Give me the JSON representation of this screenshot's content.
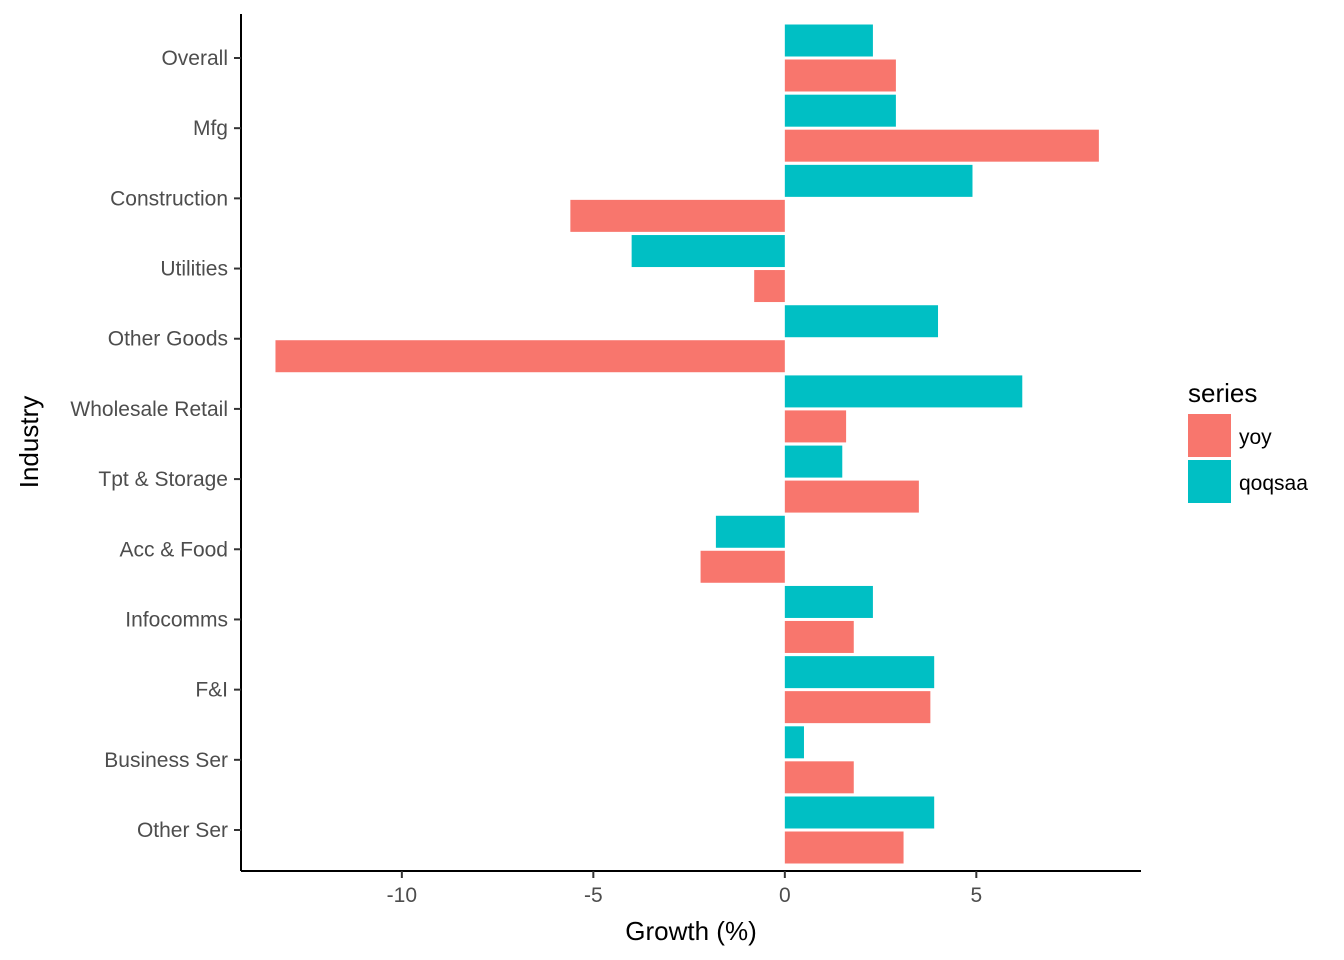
{
  "chart_data": {
    "type": "bar",
    "orientation": "horizontal",
    "title": "",
    "xlabel": "Growth (%)",
    "ylabel": "Industry",
    "xlim": [
      -14.2,
      9.3
    ],
    "xticks": [
      -10,
      -5,
      0,
      5
    ],
    "grid": false,
    "categories": [
      "Overall",
      "Mfg",
      "Construction",
      "Utilities",
      "Other Goods",
      "Wholesale Retail",
      "Tpt & Storage",
      "Acc & Food",
      "Infocomms",
      "F&I",
      "Business Ser",
      "Other Ser"
    ],
    "series": [
      {
        "name": "yoy",
        "color": "#F8766D",
        "values": [
          2.9,
          8.2,
          -5.6,
          -0.8,
          -13.3,
          1.6,
          3.5,
          -2.2,
          1.8,
          3.8,
          1.8,
          3.1
        ]
      },
      {
        "name": "qoqsaa",
        "color": "#00BFC4",
        "values": [
          2.3,
          2.9,
          4.9,
          -4.0,
          4.0,
          6.2,
          1.5,
          -1.8,
          2.3,
          3.9,
          0.5,
          3.9
        ]
      }
    ],
    "legend": {
      "title": "series",
      "placement": "right"
    }
  }
}
